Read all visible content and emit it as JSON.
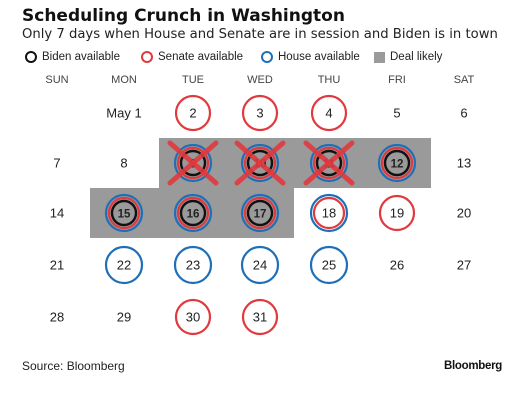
{
  "header": {
    "title": "Scheduling Crunch in Washington",
    "subtitle": "Only 7 days when House and Senate are in session and Biden is in town"
  },
  "legend": [
    {
      "label": "Biden available",
      "icon": "ring",
      "color": "#111111"
    },
    {
      "label": "Senate available",
      "icon": "ring",
      "color": "#e0393e"
    },
    {
      "label": "House available",
      "icon": "ring",
      "color": "#1f6fb8"
    },
    {
      "label": "Deal likely",
      "icon": "square",
      "color": "#9a9a9a"
    }
  ],
  "colors": {
    "biden": "#111111",
    "senate": "#e0393e",
    "house": "#1f6fb8",
    "deal": "#9a9a9a",
    "cross": "#e0393e"
  },
  "chart_data": {
    "type": "table",
    "title": "Scheduling Crunch in Washington",
    "subtitle": "Only 7 days when House and Senate are in session and Biden is in town",
    "weekdays": [
      "SUN",
      "MON",
      "TUE",
      "WED",
      "THU",
      "FRI",
      "SAT"
    ],
    "first_label": "May 1",
    "weeks": [
      [
        null,
        "May 1",
        "2",
        "3",
        "4",
        "5",
        "6"
      ],
      [
        "7",
        "8",
        "9",
        "10",
        "11",
        "12",
        "13"
      ],
      [
        "14",
        "15",
        "16",
        "17",
        "18",
        "19",
        "20"
      ],
      [
        "21",
        "22",
        "23",
        "24",
        "25",
        "26",
        "27"
      ],
      [
        "28",
        "29",
        "30",
        "31",
        null,
        null,
        null
      ]
    ],
    "days": [
      {
        "day": 1,
        "biden": false,
        "senate": false,
        "house": false,
        "deal_likely": false,
        "crossed": false
      },
      {
        "day": 2,
        "biden": false,
        "senate": true,
        "house": false,
        "deal_likely": false,
        "crossed": false
      },
      {
        "day": 3,
        "biden": false,
        "senate": true,
        "house": false,
        "deal_likely": false,
        "crossed": false
      },
      {
        "day": 4,
        "biden": false,
        "senate": true,
        "house": false,
        "deal_likely": false,
        "crossed": false
      },
      {
        "day": 9,
        "biden": true,
        "senate": true,
        "house": true,
        "deal_likely": true,
        "crossed": true
      },
      {
        "day": 10,
        "biden": true,
        "senate": true,
        "house": true,
        "deal_likely": true,
        "crossed": true
      },
      {
        "day": 11,
        "biden": true,
        "senate": true,
        "house": true,
        "deal_likely": true,
        "crossed": true
      },
      {
        "day": 12,
        "biden": true,
        "senate": true,
        "house": true,
        "deal_likely": true,
        "crossed": false
      },
      {
        "day": 15,
        "biden": true,
        "senate": true,
        "house": true,
        "deal_likely": true,
        "crossed": false
      },
      {
        "day": 16,
        "biden": true,
        "senate": true,
        "house": true,
        "deal_likely": true,
        "crossed": false
      },
      {
        "day": 17,
        "biden": true,
        "senate": true,
        "house": true,
        "deal_likely": true,
        "crossed": false
      },
      {
        "day": 18,
        "biden": false,
        "senate": true,
        "house": true,
        "deal_likely": false,
        "crossed": false
      },
      {
        "day": 19,
        "biden": false,
        "senate": true,
        "house": false,
        "deal_likely": false,
        "crossed": false
      },
      {
        "day": 22,
        "biden": false,
        "senate": false,
        "house": true,
        "deal_likely": false,
        "crossed": false
      },
      {
        "day": 23,
        "biden": false,
        "senate": false,
        "house": true,
        "deal_likely": false,
        "crossed": false
      },
      {
        "day": 24,
        "biden": false,
        "senate": false,
        "house": true,
        "deal_likely": false,
        "crossed": false
      },
      {
        "day": 25,
        "biden": false,
        "senate": false,
        "house": true,
        "deal_likely": false,
        "crossed": false
      },
      {
        "day": 30,
        "biden": false,
        "senate": true,
        "house": false,
        "deal_likely": false,
        "crossed": false
      },
      {
        "day": 31,
        "biden": false,
        "senate": true,
        "house": false,
        "deal_likely": false,
        "crossed": false
      }
    ]
  },
  "footer": {
    "source": "Source: Bloomberg",
    "brand": "Bloomberg"
  }
}
